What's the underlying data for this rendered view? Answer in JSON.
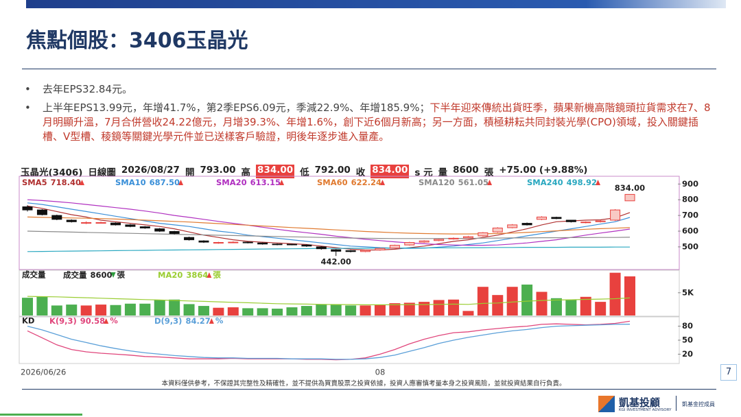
{
  "header": {
    "title": "焦點個股：3406玉晶光"
  },
  "bullets": [
    [
      "去年EPS32.84元。"
    ],
    [
      "上半年EPS13.99元，年增41.7%，第2季EPS6.09元，季減22.9%、年增185.9%；",
      "下半年迎來傳統出貨旺季，蘋果新機高階鏡頭拉貨需求在7、8月明顯升溫，7月合併營收24.22億元，月增39.3%、年增1.6%，創下近6個月新高；另一方面，積極耕耘共同封裝光學(CPO)領域，投入關鍵插槽、V型槽、稜鏡等關鍵光學元件並已送樣客戶驗證，明後年逐步進入量產。"
    ]
  ],
  "chart_data": [
    {
      "type": "candlestick",
      "info": [
        {
          "text": "玉晶光(3406)"
        },
        {
          "text": "日線圖"
        },
        {
          "text": "2026/08/27"
        },
        {
          "text": "開"
        },
        {
          "text": "793.00"
        },
        {
          "text": "高"
        },
        {
          "text": "834.00",
          "highlight": true
        },
        {
          "text": "低"
        },
        {
          "text": "792.00"
        },
        {
          "text": "收"
        },
        {
          "text": "834.00",
          "highlight": true
        },
        {
          "text": "s 元"
        },
        {
          "text": "量"
        },
        {
          "text": "8600"
        },
        {
          "text": "張"
        },
        {
          "text": "+75.00 (+9.88%)"
        }
      ],
      "categories": [
        "2026/06/26",
        null,
        null,
        null,
        null,
        null,
        null,
        null,
        null,
        null,
        null,
        null,
        null,
        null,
        null,
        null,
        null,
        null,
        null,
        null,
        null,
        null,
        null,
        null,
        "08",
        null,
        null,
        null,
        null,
        null,
        null,
        null,
        null,
        null,
        null,
        null,
        null,
        null,
        null,
        null,
        null,
        null
      ],
      "open": [
        755,
        735,
        700,
        670,
        650,
        650,
        652,
        640,
        628,
        615,
        598,
        560,
        538,
        525,
        527,
        530,
        525,
        518,
        517,
        512,
        500,
        482,
        476,
        470,
        480,
        492,
        512,
        530,
        540,
        550,
        557,
        570,
        595,
        622,
        650,
        675,
        688,
        670,
        655,
        660,
        670,
        793
      ],
      "high": [
        765,
        740,
        705,
        675,
        662,
        660,
        656,
        645,
        632,
        620,
        602,
        565,
        542,
        532,
        535,
        534,
        528,
        522,
        520,
        516,
        504,
        486,
        480,
        482,
        494,
        514,
        532,
        542,
        552,
        560,
        570,
        594,
        625,
        645,
        655,
        695,
        692,
        672,
        662,
        670,
        740,
        834
      ],
      "low": [
        725,
        700,
        670,
        655,
        645,
        648,
        636,
        625,
        615,
        595,
        580,
        540,
        525,
        520,
        524,
        522,
        514,
        510,
        510,
        500,
        482,
        442,
        465,
        466,
        476,
        488,
        508,
        526,
        536,
        546,
        552,
        566,
        590,
        618,
        636,
        670,
        676,
        655,
        650,
        655,
        665,
        792
      ],
      "close": [
        735,
        705,
        675,
        660,
        655,
        655,
        640,
        630,
        620,
        600,
        585,
        545,
        530,
        528,
        530,
        528,
        518,
        515,
        515,
        505,
        488,
        472,
        470,
        478,
        490,
        510,
        528,
        538,
        548,
        555,
        565,
        590,
        620,
        640,
        640,
        690,
        680,
        660,
        658,
        665,
        735,
        834
      ],
      "up_color": "#e8413e",
      "up_fill": "#f8c9c4",
      "down_color": "#111111",
      "ylim": [
        360,
        945
      ],
      "yticks": [
        500,
        600,
        700,
        800,
        900
      ],
      "ma_series": [
        {
          "name": "SMA5",
          "value_label": "718.40",
          "arrow": "up",
          "color": "#b03030",
          "values": [
            760,
            745,
            725,
            705,
            690,
            670,
            660,
            650,
            640,
            630,
            615,
            595,
            575,
            560,
            545,
            535,
            530,
            525,
            520,
            515,
            505,
            495,
            485,
            480,
            480,
            485,
            495,
            505,
            520,
            535,
            545,
            560,
            575,
            595,
            615,
            640,
            660,
            665,
            670,
            672,
            685,
            718.4
          ]
        },
        {
          "name": "SMA10",
          "value_label": "687.50",
          "arrow": "up",
          "color": "#3a8fd8",
          "values": [
            780,
            770,
            755,
            740,
            725,
            710,
            695,
            680,
            665,
            650,
            640,
            630,
            615,
            600,
            590,
            575,
            565,
            555,
            545,
            535,
            525,
            515,
            505,
            500,
            495,
            492,
            490,
            492,
            498,
            505,
            515,
            525,
            540,
            555,
            570,
            585,
            600,
            615,
            630,
            645,
            660,
            687.5
          ]
        },
        {
          "name": "SMA20",
          "value_label": "613.15",
          "arrow": "up",
          "color": "#b030c0",
          "values": [
            800,
            795,
            788,
            780,
            770,
            760,
            750,
            740,
            728,
            715,
            700,
            688,
            675,
            662,
            650,
            638,
            625,
            612,
            600,
            590,
            580,
            568,
            558,
            548,
            540,
            532,
            525,
            520,
            515,
            512,
            510,
            510,
            512,
            518,
            525,
            535,
            545,
            560,
            575,
            588,
            600,
            613.15
          ]
        },
        {
          "name": "SMA60",
          "value_label": "622.24",
          "arrow": "up",
          "color": "#e07a30",
          "values": [
            690,
            688,
            686,
            684,
            682,
            680,
            677,
            674,
            670,
            666,
            662,
            658,
            653,
            648,
            643,
            638,
            633,
            628,
            623,
            618,
            613,
            608,
            603,
            598,
            594,
            590,
            587,
            585,
            583,
            582,
            582,
            583,
            585,
            588,
            592,
            597,
            602,
            607,
            612,
            616,
            619,
            622.24
          ]
        },
        {
          "name": "SMA120",
          "value_label": "561.05",
          "arrow": "up",
          "color": "#8a8a8a",
          "values": [
            600,
            598,
            596,
            594,
            592,
            590,
            588,
            586,
            584,
            582,
            580,
            578,
            576,
            574,
            572,
            570,
            568,
            566,
            564,
            562,
            560,
            558,
            556,
            555,
            554,
            553,
            553,
            553,
            553,
            554,
            554,
            555,
            556,
            557,
            557,
            558,
            558,
            559,
            559,
            560,
            560,
            561.05
          ]
        },
        {
          "name": "SMA240",
          "value_label": "498.92",
          "arrow": "up",
          "color": "#2aa8c0",
          "values": [
            470,
            471,
            472,
            473,
            474,
            475,
            476,
            477,
            478,
            479,
            480,
            481,
            482,
            483,
            484,
            485,
            486,
            487,
            488,
            489,
            490,
            490,
            491,
            491,
            492,
            492,
            493,
            493,
            494,
            494,
            495,
            495,
            496,
            496,
            497,
            497,
            497,
            498,
            498,
            498,
            499,
            498.92
          ]
        }
      ],
      "annotations": [
        {
          "label": "834.00",
          "value": 834
        },
        {
          "label": "442.00",
          "value": 442
        }
      ]
    },
    {
      "type": "bar",
      "title": "成交量",
      "series": [
        {
          "name": "成交量",
          "arrow": "down",
          "unit": "張",
          "up_color": "#e8413e",
          "down_color": "#4caf50",
          "flat_color": "#555555",
          "values": [
            3900,
            4200,
            2200,
            2400,
            2200,
            2400,
            2300,
            2600,
            2600,
            3400,
            3500,
            2500,
            2100,
            1700,
            1800,
            1600,
            1600,
            1500,
            1800,
            2100,
            2500,
            2500,
            2200,
            2200,
            2300,
            2700,
            2800,
            3000,
            3400,
            3500,
            1000,
            6300,
            4500,
            6300,
            6800,
            5200,
            3800,
            3500,
            4100,
            3000,
            9400,
            8600
          ]
        },
        {
          "name": "MA20",
          "arrow": "up",
          "unit": "張",
          "color": "#9acd32",
          "values": [
            4200,
            4150,
            4100,
            4000,
            3900,
            3800,
            3700,
            3600,
            3500,
            3400,
            3300,
            3200,
            3100,
            3000,
            2900,
            2800,
            2700,
            2600,
            2550,
            2500,
            2450,
            2400,
            2400,
            2350,
            2350,
            2350,
            2400,
            2400,
            2450,
            2500,
            2450,
            2650,
            2750,
            2950,
            3150,
            3300,
            3400,
            3450,
            3550,
            3600,
            3700,
            3864
          ]
        }
      ],
      "ylim": [
        0,
        9800
      ],
      "yticks": [
        {
          "value": 5000,
          "label": "5K"
        }
      ]
    },
    {
      "type": "line",
      "title": "KD",
      "series": [
        {
          "name": "K(9,3)",
          "arrow": "up",
          "unit": "%",
          "color": "#e0457b",
          "values": [
            70,
            55,
            40,
            30,
            25,
            22,
            20,
            18,
            15,
            14,
            12,
            10,
            10,
            10,
            11,
            10,
            10,
            10,
            10,
            9,
            9,
            8,
            9,
            12,
            20,
            30,
            42,
            52,
            60,
            66,
            68,
            72,
            75,
            78,
            80,
            84,
            85,
            84,
            83,
            84,
            86,
            90.58
          ]
        },
        {
          "name": "D(9,3)",
          "arrow": "up",
          "unit": "%",
          "color": "#5a9fd8",
          "values": [
            80,
            72,
            62,
            52,
            45,
            38,
            32,
            27,
            23,
            20,
            17,
            15,
            13,
            12,
            12,
            11,
            11,
            11,
            10,
            10,
            10,
            9,
            9,
            10,
            13,
            18,
            26,
            34,
            43,
            50,
            56,
            61,
            66,
            70,
            73,
            77,
            80,
            81,
            82,
            83,
            84,
            84.27
          ]
        }
      ],
      "ylim": [
        0,
        100
      ],
      "yticks": [
        20,
        50,
        80
      ]
    }
  ],
  "footer": {
    "disclaimer": "本資料僅供參考，不保證其完整性及精確性，並不提供為買賣股票之投資依據，投資人應審慎考量本身之投資風險，並就投資結果自行負責。",
    "page": "7",
    "logo": "凱基投顧",
    "logo_en": "KGI INVESTMENT ADVISORY",
    "member": "凱基金控成員"
  }
}
